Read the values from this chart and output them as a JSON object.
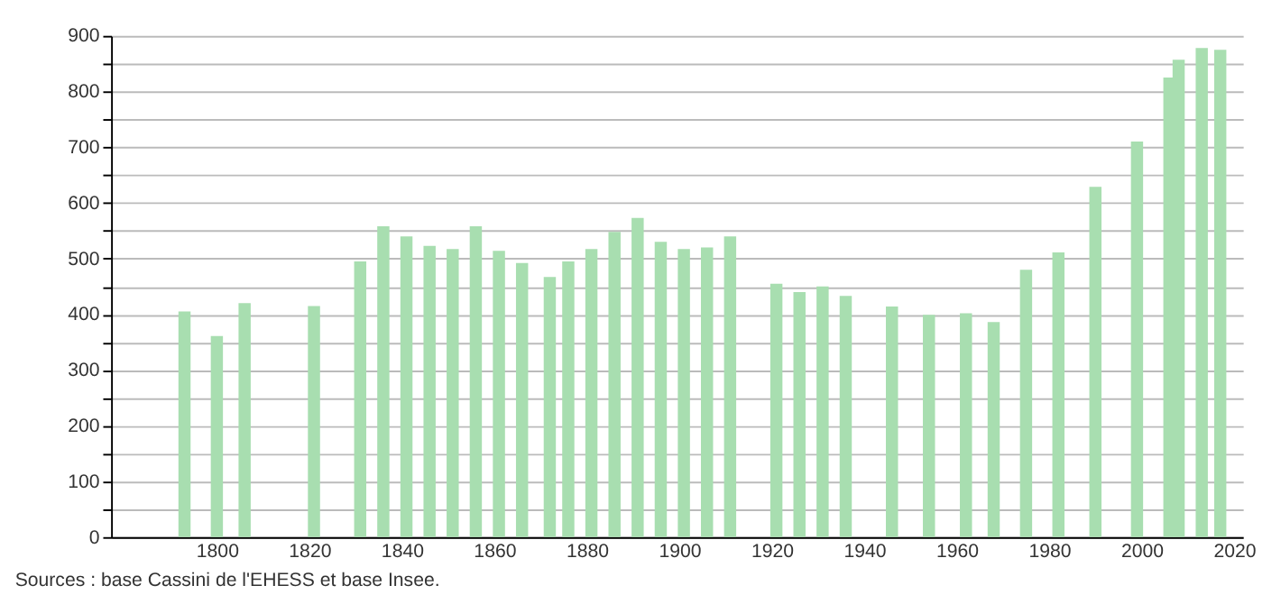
{
  "chart_data": {
    "type": "bar",
    "x": [
      1793,
      1800,
      1806,
      1821,
      1831,
      1836,
      1841,
      1846,
      1851,
      1856,
      1861,
      1866,
      1872,
      1876,
      1881,
      1886,
      1891,
      1896,
      1901,
      1906,
      1911,
      1921,
      1926,
      1931,
      1936,
      1946,
      1954,
      1962,
      1968,
      1975,
      1982,
      1990,
      1999,
      2006,
      2008,
      2013,
      2017
    ],
    "values": [
      405,
      361,
      420,
      415,
      495,
      558,
      540,
      523,
      517,
      558,
      514,
      492,
      467,
      495,
      517,
      548,
      573,
      530,
      517,
      520,
      540,
      455,
      440,
      450,
      433,
      414,
      399,
      402,
      386,
      480,
      511,
      629,
      710,
      825,
      857,
      878,
      875
    ],
    "color": "#a8deb0",
    "xlim": [
      1779,
      2020
    ],
    "xticks": [
      1800,
      1820,
      1840,
      1860,
      1880,
      1900,
      1920,
      1940,
      1960,
      1980,
      2000,
      2020
    ],
    "ylim": [
      0,
      900
    ],
    "yticks": [
      0,
      {
        "value": 50,
        "label": null
      },
      100,
      {
        "value": 150,
        "label": null
      },
      200,
      {
        "value": 250,
        "label": null
      },
      300,
      {
        "value": 350,
        "label": null
      },
      400,
      {
        "value": 450,
        "label": null
      },
      500,
      {
        "value": 550,
        "label": null
      },
      600,
      {
        "value": 650,
        "label": null
      },
      700,
      {
        "value": 750,
        "label": null
      },
      800,
      {
        "value": 850,
        "label": null
      },
      900
    ],
    "grid": "y",
    "annotations": [
      "Sources : base Cassini de l'EHESS et base Insee."
    ]
  }
}
